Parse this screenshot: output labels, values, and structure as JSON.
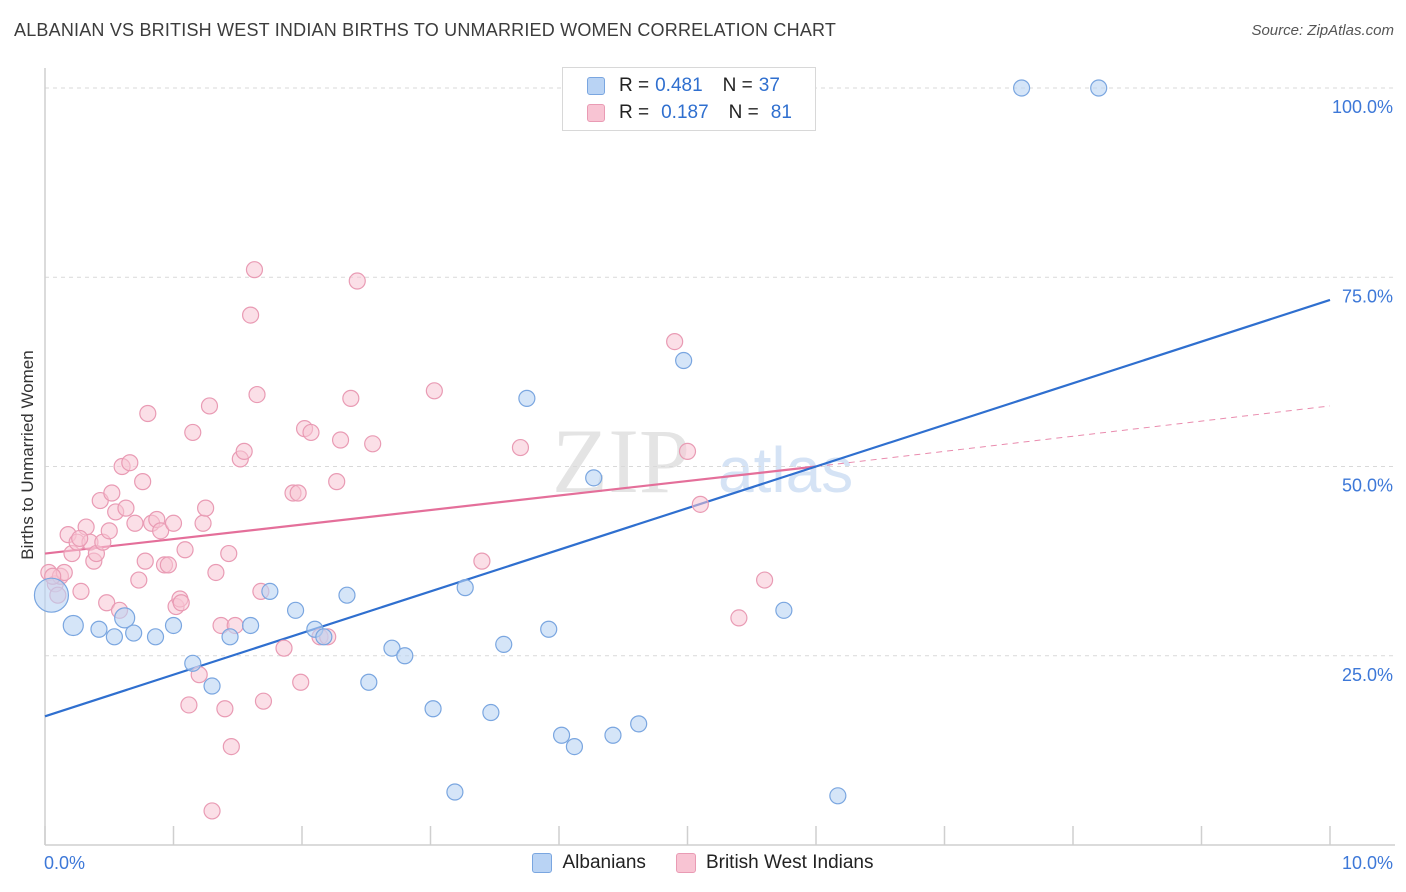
{
  "title": "ALBANIAN VS BRITISH WEST INDIAN BIRTHS TO UNMARRIED WOMEN CORRELATION CHART",
  "source": "Source: ZipAtlas.com",
  "watermark": {
    "zip": "ZIP",
    "atlas": "atlas"
  },
  "colors": {
    "blue_fill": "#b9d3f4",
    "blue_stroke": "#7aa6e0",
    "blue_line": "#2f6fcf",
    "pink_fill": "#f8c4d3",
    "pink_stroke": "#e99bb4",
    "pink_line": "#e46f9a",
    "grid": "#d9d9d9",
    "tick_label": "#3d78d8"
  },
  "legend": {
    "rows": [
      {
        "r_label": "R =",
        "r_value": "0.481",
        "n_label": "N =",
        "n_value": "37"
      },
      {
        "r_label": "R =",
        "r_value": "0.187",
        "n_label": "N =",
        "n_value": "81"
      }
    ]
  },
  "bottom_legend": [
    "Albanians",
    "British West Indians"
  ],
  "chart_data": {
    "type": "scatter",
    "title": "ALBANIAN VS BRITISH WEST INDIAN BIRTHS TO UNMARRIED WOMEN CORRELATION CHART",
    "xlabel": "",
    "ylabel": "Births to Unmarried Women",
    "xlim": [
      0,
      10
    ],
    "ylim": [
      0,
      100
    ],
    "x_tick_labels": [
      "0.0%",
      "10.0%"
    ],
    "y_tick_labels": [
      "25.0%",
      "50.0%",
      "75.0%",
      "100.0%"
    ],
    "y_ticks": [
      25,
      50,
      75,
      100
    ],
    "grid": true,
    "legend_position": "top-center",
    "series": [
      {
        "name": "Albanians",
        "R": 0.481,
        "N": 37,
        "trend": {
          "x": [
            0,
            10
          ],
          "y": [
            17.0,
            72.0
          ],
          "style": "solid"
        },
        "points": [
          {
            "x": 0.05,
            "y": 33.0,
            "size": "large"
          },
          {
            "x": 0.22,
            "y": 29.0,
            "size": "medium"
          },
          {
            "x": 0.62,
            "y": 30.0,
            "size": "medium"
          },
          {
            "x": 0.54,
            "y": 27.5
          },
          {
            "x": 0.69,
            "y": 28.0
          },
          {
            "x": 0.86,
            "y": 27.5
          },
          {
            "x": 1.0,
            "y": 29.0
          },
          {
            "x": 1.15,
            "y": 24.0
          },
          {
            "x": 1.3,
            "y": 21.0
          },
          {
            "x": 1.44,
            "y": 27.5
          },
          {
            "x": 1.6,
            "y": 29.0
          },
          {
            "x": 1.75,
            "y": 33.5
          },
          {
            "x": 1.95,
            "y": 31.0
          },
          {
            "x": 2.1,
            "y": 28.5
          },
          {
            "x": 2.17,
            "y": 27.5
          },
          {
            "x": 2.35,
            "y": 33.0
          },
          {
            "x": 2.52,
            "y": 21.5
          },
          {
            "x": 2.7,
            "y": 26.0
          },
          {
            "x": 2.8,
            "y": 25.0
          },
          {
            "x": 3.02,
            "y": 18.0
          },
          {
            "x": 3.19,
            "y": 7.0
          },
          {
            "x": 3.27,
            "y": 34.0
          },
          {
            "x": 3.47,
            "y": 17.5
          },
          {
            "x": 3.57,
            "y": 26.5
          },
          {
            "x": 3.75,
            "y": 59.0
          },
          {
            "x": 3.92,
            "y": 28.5
          },
          {
            "x": 4.02,
            "y": 14.5
          },
          {
            "x": 4.12,
            "y": 13.0
          },
          {
            "x": 4.27,
            "y": 48.5
          },
          {
            "x": 4.42,
            "y": 14.5
          },
          {
            "x": 4.62,
            "y": 16.0
          },
          {
            "x": 4.97,
            "y": 64.0
          },
          {
            "x": 5.75,
            "y": 31.0
          },
          {
            "x": 6.17,
            "y": 6.5
          },
          {
            "x": 7.6,
            "y": 100.0
          },
          {
            "x": 8.2,
            "y": 100.0
          },
          {
            "x": 0.42,
            "y": 28.5
          }
        ]
      },
      {
        "name": "British West Indians",
        "R": 0.187,
        "N": 81,
        "trend": {
          "x": [
            0,
            6.0
          ],
          "y": [
            38.5,
            50.0
          ],
          "style": "solid",
          "extension": {
            "x": [
              6.0,
              10
            ],
            "y": [
              50.0,
              58.0
            ],
            "style": "dashed"
          }
        },
        "points": [
          {
            "x": 0.03,
            "y": 36.0
          },
          {
            "x": 0.08,
            "y": 34.5
          },
          {
            "x": 0.12,
            "y": 35.5
          },
          {
            "x": 0.15,
            "y": 36.0
          },
          {
            "x": 0.18,
            "y": 41.0
          },
          {
            "x": 0.21,
            "y": 38.5
          },
          {
            "x": 0.25,
            "y": 40.0
          },
          {
            "x": 0.28,
            "y": 33.5
          },
          {
            "x": 0.32,
            "y": 42.0
          },
          {
            "x": 0.35,
            "y": 40.0
          },
          {
            "x": 0.38,
            "y": 37.5
          },
          {
            "x": 0.4,
            "y": 38.5
          },
          {
            "x": 0.43,
            "y": 45.5
          },
          {
            "x": 0.45,
            "y": 40.0
          },
          {
            "x": 0.48,
            "y": 32.0
          },
          {
            "x": 0.52,
            "y": 46.5
          },
          {
            "x": 0.55,
            "y": 44.0
          },
          {
            "x": 0.58,
            "y": 31.0
          },
          {
            "x": 0.6,
            "y": 50.0
          },
          {
            "x": 0.63,
            "y": 44.5
          },
          {
            "x": 0.66,
            "y": 50.5
          },
          {
            "x": 0.7,
            "y": 42.5
          },
          {
            "x": 0.73,
            "y": 35.0
          },
          {
            "x": 0.76,
            "y": 48.0
          },
          {
            "x": 0.78,
            "y": 37.5
          },
          {
            "x": 0.8,
            "y": 57.0
          },
          {
            "x": 0.83,
            "y": 42.5
          },
          {
            "x": 0.87,
            "y": 43.0
          },
          {
            "x": 0.9,
            "y": 41.5
          },
          {
            "x": 0.93,
            "y": 37.0
          },
          {
            "x": 0.96,
            "y": 37.0
          },
          {
            "x": 1.0,
            "y": 42.5
          },
          {
            "x": 1.02,
            "y": 31.5
          },
          {
            "x": 1.05,
            "y": 32.5
          },
          {
            "x": 1.09,
            "y": 39.0
          },
          {
            "x": 1.12,
            "y": 18.5
          },
          {
            "x": 1.15,
            "y": 54.5
          },
          {
            "x": 1.2,
            "y": 22.5
          },
          {
            "x": 1.23,
            "y": 42.5
          },
          {
            "x": 1.25,
            "y": 44.5
          },
          {
            "x": 1.28,
            "y": 58.0
          },
          {
            "x": 1.3,
            "y": 4.5
          },
          {
            "x": 1.33,
            "y": 36.0
          },
          {
            "x": 1.37,
            "y": 29.0
          },
          {
            "x": 1.4,
            "y": 18.0
          },
          {
            "x": 1.43,
            "y": 38.5
          },
          {
            "x": 1.45,
            "y": 13.0
          },
          {
            "x": 1.48,
            "y": 29.0
          },
          {
            "x": 1.52,
            "y": 51.0
          },
          {
            "x": 1.55,
            "y": 52.0
          },
          {
            "x": 1.6,
            "y": 70.0
          },
          {
            "x": 1.63,
            "y": 76.0
          },
          {
            "x": 1.65,
            "y": 59.5
          },
          {
            "x": 1.68,
            "y": 33.5
          },
          {
            "x": 1.7,
            "y": 19.0
          },
          {
            "x": 1.86,
            "y": 26.0
          },
          {
            "x": 1.93,
            "y": 46.5
          },
          {
            "x": 1.97,
            "y": 46.5
          },
          {
            "x": 1.99,
            "y": 21.5
          },
          {
            "x": 2.02,
            "y": 55.0
          },
          {
            "x": 2.07,
            "y": 54.5
          },
          {
            "x": 2.14,
            "y": 27.5
          },
          {
            "x": 2.2,
            "y": 27.5
          },
          {
            "x": 2.27,
            "y": 48.0
          },
          {
            "x": 2.3,
            "y": 53.5
          },
          {
            "x": 2.38,
            "y": 59.0
          },
          {
            "x": 2.43,
            "y": 74.5
          },
          {
            "x": 2.55,
            "y": 53.0
          },
          {
            "x": 3.03,
            "y": 60.0
          },
          {
            "x": 3.4,
            "y": 37.5
          },
          {
            "x": 3.7,
            "y": 52.5
          },
          {
            "x": 4.9,
            "y": 66.5
          },
          {
            "x": 5.0,
            "y": 52.0
          },
          {
            "x": 5.1,
            "y": 45.0
          },
          {
            "x": 5.4,
            "y": 30.0
          },
          {
            "x": 5.6,
            "y": 35.0
          },
          {
            "x": 0.06,
            "y": 35.5
          },
          {
            "x": 0.1,
            "y": 33.0
          },
          {
            "x": 0.27,
            "y": 40.5
          },
          {
            "x": 1.06,
            "y": 32.0
          },
          {
            "x": 0.5,
            "y": 41.5
          }
        ]
      }
    ]
  }
}
